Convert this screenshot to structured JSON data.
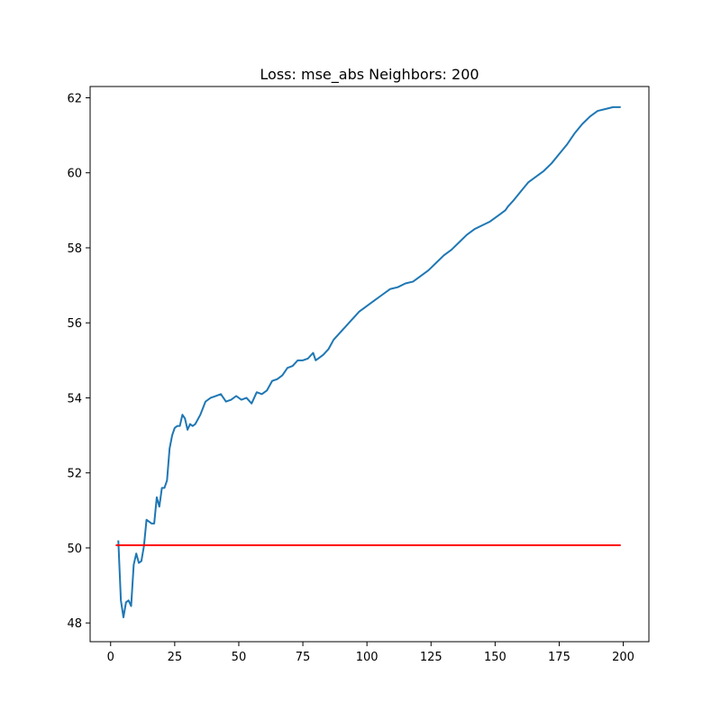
{
  "chart_data": {
    "type": "line",
    "title": "Loss: mse_abs Neighbors: 200",
    "xlabel": "",
    "ylabel": "",
    "xlim": [
      -8,
      210
    ],
    "ylim": [
      47.5,
      62.3
    ],
    "xticks": [
      0,
      25,
      50,
      75,
      100,
      125,
      150,
      175,
      200
    ],
    "yticks": [
      48,
      50,
      52,
      54,
      56,
      58,
      60,
      62
    ],
    "grid": false,
    "legend": "none",
    "series": [
      {
        "color": "#1f77b4",
        "x": [
          3,
          4,
          5,
          6,
          7,
          8,
          9,
          10,
          11,
          12,
          13,
          14,
          15,
          16,
          17,
          18,
          19,
          20,
          21,
          22,
          23,
          24,
          25,
          26,
          27,
          28,
          29,
          30,
          31,
          32,
          33,
          35,
          37,
          39,
          41,
          43,
          45,
          47,
          49,
          51,
          53,
          55,
          57,
          59,
          61,
          63,
          65,
          67,
          69,
          71,
          73,
          75,
          77,
          79,
          80,
          81,
          83,
          85,
          87,
          89,
          91,
          93,
          95,
          97,
          99,
          100,
          103,
          106,
          109,
          112,
          115,
          118,
          121,
          124,
          127,
          130,
          133,
          136,
          139,
          142,
          145,
          148,
          150,
          152,
          154,
          155,
          157,
          160,
          163,
          166,
          169,
          172,
          175,
          178,
          181,
          184,
          187,
          190,
          193,
          196,
          199
        ],
        "values": [
          50.2,
          48.6,
          48.15,
          48.55,
          48.6,
          48.45,
          49.55,
          49.85,
          49.6,
          49.65,
          50.05,
          50.75,
          50.7,
          50.65,
          50.65,
          51.35,
          51.1,
          51.6,
          51.6,
          51.8,
          52.65,
          53.0,
          53.2,
          53.25,
          53.25,
          53.55,
          53.45,
          53.15,
          53.3,
          53.25,
          53.3,
          53.55,
          53.9,
          54.0,
          54.05,
          54.1,
          53.9,
          53.95,
          54.05,
          53.95,
          54.0,
          53.85,
          54.15,
          54.1,
          54.2,
          54.45,
          54.5,
          54.6,
          54.8,
          54.85,
          55.0,
          55.0,
          55.05,
          55.2,
          55.0,
          55.05,
          55.15,
          55.3,
          55.55,
          55.7,
          55.85,
          56.0,
          56.15,
          56.3,
          56.4,
          56.45,
          56.6,
          56.75,
          56.9,
          56.95,
          57.05,
          57.1,
          57.25,
          57.4,
          57.6,
          57.8,
          57.95,
          58.15,
          58.35,
          58.5,
          58.6,
          58.7,
          58.8,
          58.9,
          59.0,
          59.1,
          59.25,
          59.5,
          59.75,
          59.9,
          60.05,
          60.25,
          60.5,
          60.75,
          61.05,
          61.3,
          61.5,
          61.65,
          61.7,
          61.75,
          61.75
        ]
      },
      {
        "color": "#ff0000",
        "x": [
          2,
          199
        ],
        "values": [
          50.07,
          50.07
        ]
      }
    ]
  }
}
